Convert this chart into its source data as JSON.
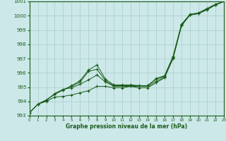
{
  "xlabel": "Graphe pression niveau de la mer (hPa)",
  "ylim": [
    993,
    1001
  ],
  "xlim": [
    0,
    23
  ],
  "yticks": [
    993,
    994,
    995,
    996,
    997,
    998,
    999,
    1000,
    1001
  ],
  "xticks": [
    0,
    1,
    2,
    3,
    4,
    5,
    6,
    7,
    8,
    9,
    10,
    11,
    12,
    13,
    14,
    15,
    16,
    17,
    18,
    19,
    20,
    21,
    22,
    23
  ],
  "background_color": "#cce8e8",
  "grid_color": "#aacccc",
  "line_color": "#1a5c1a",
  "line1": [
    993.2,
    993.8,
    994.0,
    994.3,
    994.35,
    994.45,
    994.6,
    994.75,
    995.05,
    995.05,
    994.95,
    994.95,
    995.05,
    994.95,
    994.95,
    995.3,
    995.65,
    997.0,
    999.3,
    1000.05,
    1000.15,
    1000.4,
    1000.75,
    1001.0
  ],
  "line2": [
    993.2,
    993.8,
    994.05,
    994.55,
    994.85,
    994.95,
    995.2,
    995.5,
    995.85,
    995.35,
    995.05,
    995.05,
    995.05,
    995.05,
    995.05,
    995.4,
    995.7,
    997.05,
    999.3,
    1000.05,
    1000.15,
    1000.45,
    1000.75,
    1001.0
  ],
  "line3": [
    993.2,
    993.8,
    994.1,
    994.5,
    994.8,
    995.05,
    995.35,
    996.1,
    996.25,
    995.45,
    995.1,
    995.1,
    995.1,
    995.1,
    995.1,
    995.55,
    995.75,
    997.1,
    999.35,
    1000.05,
    1000.15,
    1000.45,
    1000.75,
    1001.0
  ],
  "line4": [
    993.2,
    993.8,
    994.1,
    994.5,
    994.8,
    995.1,
    995.45,
    996.2,
    996.55,
    995.55,
    995.15,
    995.15,
    995.15,
    995.1,
    995.1,
    995.6,
    995.8,
    997.15,
    999.4,
    1000.1,
    1000.2,
    1000.5,
    1000.8,
    1001.0
  ]
}
